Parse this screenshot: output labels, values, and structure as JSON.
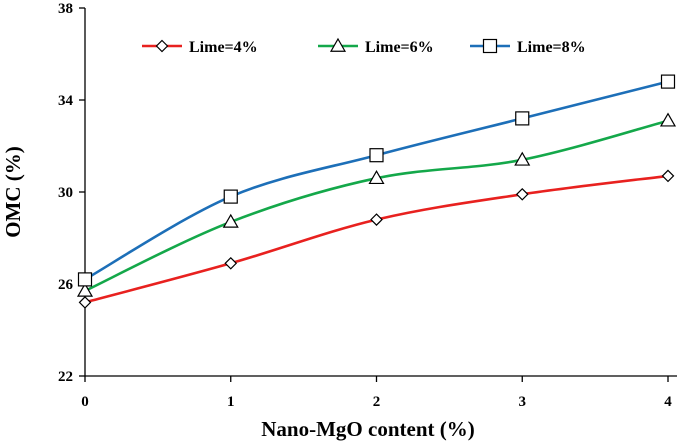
{
  "chart_data": {
    "type": "line",
    "xlabel": "Nano-MgO content (%)",
    "ylabel": "OMC (%)",
    "x": [
      0,
      1,
      2,
      3,
      4
    ],
    "x_tick_labels": [
      "0",
      "1",
      "2",
      "3",
      "4"
    ],
    "y_tick_labels": [
      "22",
      "26",
      "30",
      "34",
      "38"
    ],
    "xlim": [
      0,
      4
    ],
    "ylim": [
      22,
      38
    ],
    "grid": false,
    "legend_position": "top",
    "smooth": true,
    "series": [
      {
        "name": "Lime=4%",
        "values": [
          25.2,
          26.9,
          28.8,
          29.9,
          30.7
        ],
        "color": "#e8211f",
        "marker": "diamond"
      },
      {
        "name": "Lime=6%",
        "values": [
          25.7,
          28.7,
          30.6,
          31.4,
          33.1
        ],
        "color": "#14a84a",
        "marker": "triangle"
      },
      {
        "name": "Lime=8%",
        "values": [
          26.2,
          29.8,
          31.6,
          33.2,
          34.8
        ],
        "color": "#1d6fb8",
        "marker": "square"
      }
    ]
  }
}
